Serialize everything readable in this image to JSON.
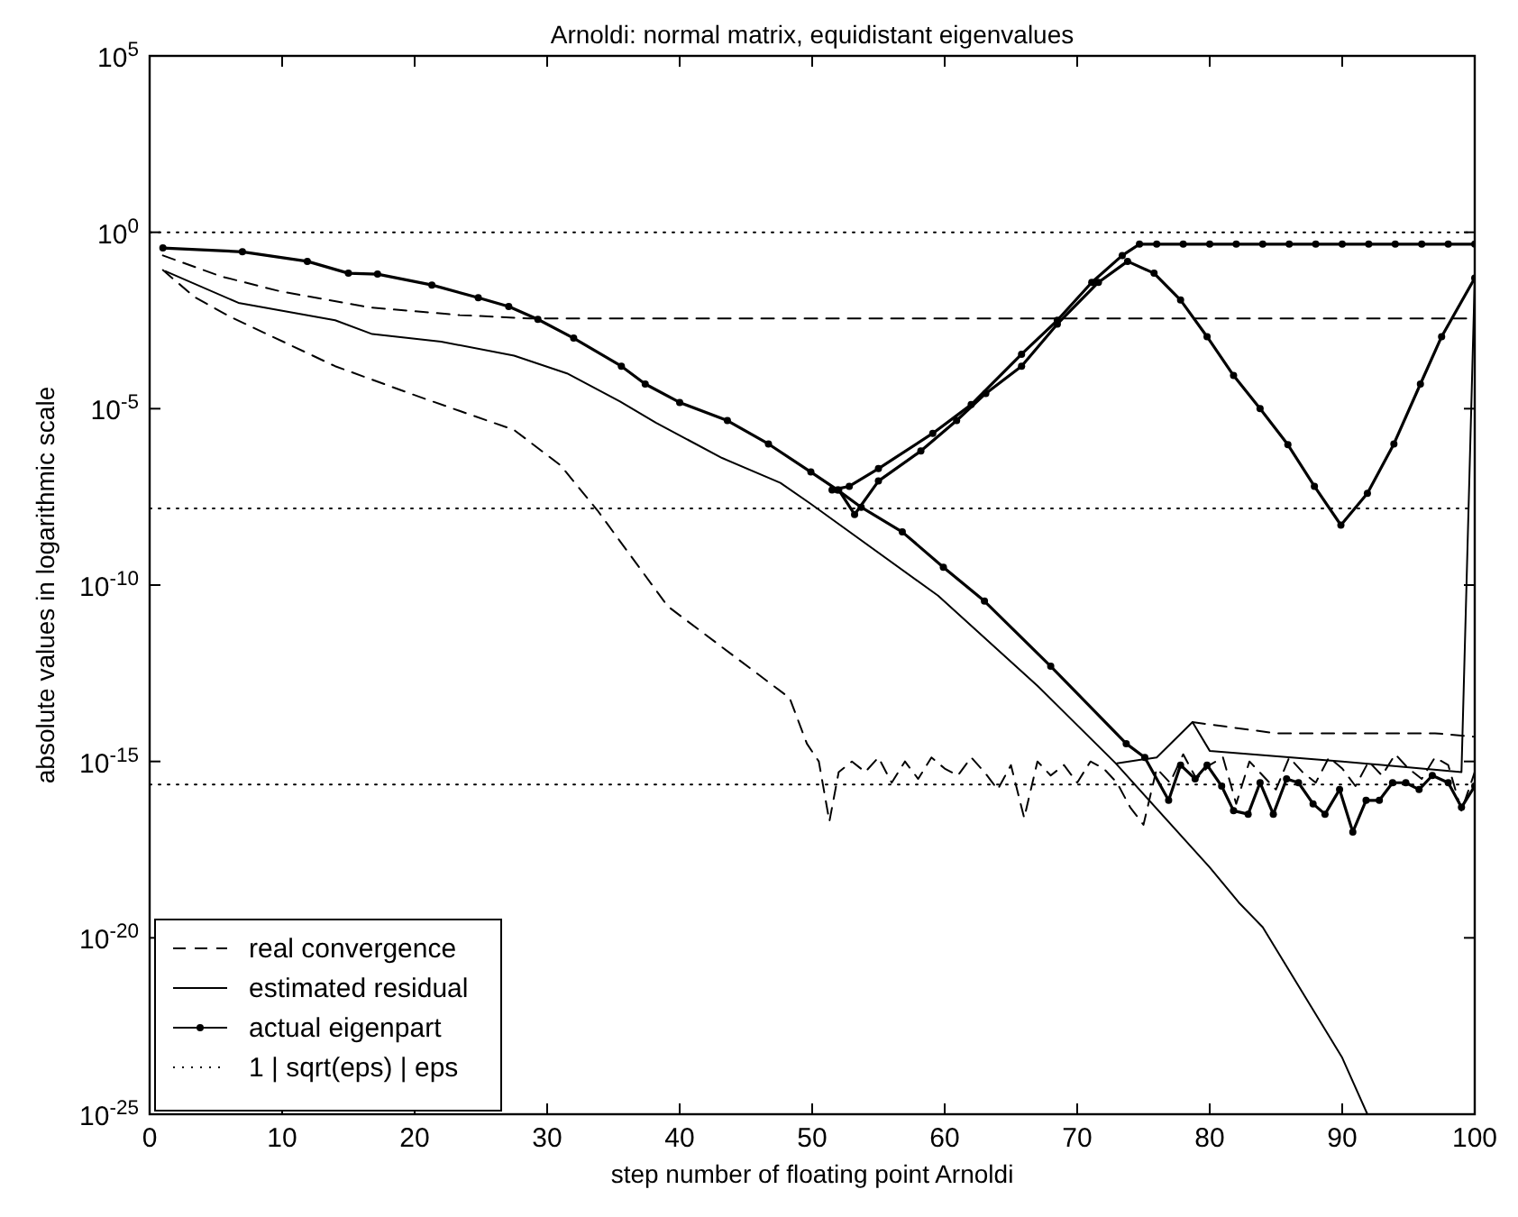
{
  "chart_data": {
    "type": "line",
    "title": "Arnoldi: normal matrix, equidistant eigenvalues",
    "xlabel": "step number of floating point Arnoldi",
    "ylabel": "absolute values in logarithmic scale",
    "log": "y",
    "xlim": [
      0,
      100
    ],
    "xticks": [
      0,
      10,
      20,
      30,
      40,
      50,
      60,
      70,
      80,
      90,
      100
    ],
    "ylim": [
      1e-25,
      100000
    ],
    "yticks": [
      {
        "value": 1e-25,
        "label": "10$^{-25}$"
      },
      {
        "value": 1e-20,
        "label": "10$^{-20}$"
      },
      {
        "value": 1e-15,
        "label": "10$^{-15}$"
      },
      {
        "value": 1e-10,
        "label": "10$^{-10}$"
      },
      {
        "value": 1e-05,
        "label": "10$^{-5}$"
      },
      {
        "value": 1,
        "label": "10$^{0}$"
      },
      {
        "value": 100000,
        "label": "10$^{5}$"
      }
    ],
    "legend": "bottom left",
    "series": [
      {
        "name": "real convergence",
        "color": "#000000",
        "line_style": "dashed",
        "marker": "none",
        "x": [
          1,
          5.4,
          9.9,
          16.6,
          23.4,
          28.7,
          100
        ],
        "values": [
          0.22,
          0.056,
          0.021,
          0.0074,
          0.0045,
          0.0036,
          0.0036
        ]
      },
      {
        "color": "#000000",
        "line_style": "dashed",
        "marker": "none",
        "x": [
          1,
          3.4,
          6.1,
          14,
          20.3,
          27.5,
          31,
          33.8,
          39.1,
          48.3,
          49.6,
          50.5,
          51.3,
          52,
          53,
          54,
          55,
          56,
          57,
          58,
          59,
          60,
          61,
          62,
          63,
          64,
          65,
          66,
          67,
          68,
          69,
          70,
          71,
          72,
          73,
          74,
          75,
          76,
          77,
          78,
          79,
          80,
          81,
          82,
          83,
          84,
          85,
          86,
          87,
          88,
          89,
          90,
          91,
          92,
          93,
          94,
          95,
          96,
          97,
          98,
          99,
          100
        ],
        "values": [
          0.085,
          0.0145,
          0.004,
          0.00016,
          2.2e-05,
          2.5e-06,
          2.5e-07,
          1.3e-08,
          2.5e-11,
          6.3e-14,
          3.2e-15,
          1e-15,
          2e-17,
          5e-16,
          1e-15,
          5e-16,
          1.3e-15,
          2.5e-16,
          1e-15,
          3.2e-16,
          1.3e-15,
          6.3e-16,
          4e-16,
          1.3e-15,
          5e-16,
          1.6e-16,
          7.9e-16,
          2.5e-17,
          1e-15,
          4e-16,
          7.9e-16,
          2.5e-16,
          1e-15,
          6.3e-16,
          2.5e-16,
          5e-17,
          1.6e-17,
          6.3e-16,
          2.5e-16,
          1.6e-15,
          3.2e-16,
          7.9e-16,
          1.3e-15,
          6.3e-17,
          1e-15,
          4e-16,
          1.6e-16,
          1.3e-15,
          5e-16,
          2.5e-16,
          1.3e-15,
          6.3e-16,
          2e-16,
          1e-15,
          4e-16,
          1.6e-15,
          6.3e-16,
          3.2e-16,
          1.3e-15,
          7.9e-16,
          4e-17,
          5e-16
        ]
      },
      {
        "color": "#000000",
        "line_style": "dashed",
        "marker": "none",
        "x": [
          78.7,
          85,
          90,
          97,
          100
        ],
        "values": [
          1.3e-14,
          6.3e-15,
          6.3e-15,
          6.3e-15,
          5e-15
        ]
      },
      {
        "name": "estimated residual",
        "color": "#000000",
        "line_style": "solid",
        "marker": "none",
        "x": [
          1.2,
          6.7,
          14,
          16.8,
          22,
          27.5,
          31.5,
          35.5,
          38.2,
          43.2,
          47.6,
          49.9,
          59.5,
          67,
          72.9,
          80,
          82.2,
          84,
          90,
          91.9
        ],
        "values": [
          0.079,
          0.01,
          0.0032,
          0.0013,
          0.00079,
          0.00032,
          0.0001,
          1.6e-05,
          4e-06,
          4e-07,
          7.9e-08,
          2e-08,
          5e-11,
          1.4e-13,
          8.9e-16,
          1e-18,
          1e-19,
          2e-20,
          4e-24,
          1e-25
        ]
      },
      {
        "color": "#000000",
        "line_style": "solid",
        "marker": "none",
        "x": [
          73,
          76,
          78.7,
          80,
          90,
          97.5,
          99,
          100
        ],
        "values": [
          8.9e-16,
          1.3e-15,
          1.3e-14,
          2e-15,
          1e-15,
          5.6e-16,
          5e-16,
          0.05
        ]
      },
      {
        "name": "actual eigenpart",
        "color": "#000000",
        "line_style": "solid",
        "marker": "circle",
        "x": [
          1,
          7,
          11.9,
          15,
          17.2,
          21.3,
          24.8,
          27.1,
          29.3,
          32,
          35.6,
          37.4,
          40,
          43.6,
          46.7,
          49.9,
          51.9,
          53.7,
          56.8,
          59.9,
          63,
          68,
          73.7,
          75.1,
          76.9,
          77.8,
          78.9,
          79.8,
          80.9,
          81.8,
          82.9,
          83.8,
          84.8,
          85.8,
          86.7,
          87.8,
          88.7,
          89.8,
          90.8,
          91.8,
          92.8,
          93.8,
          94.8,
          95.8,
          96.8,
          98,
          99,
          100
        ],
        "values": [
          0.36,
          0.28,
          0.15,
          0.069,
          0.065,
          0.032,
          0.014,
          0.0079,
          0.0034,
          0.001,
          0.00016,
          5e-05,
          1.5e-05,
          4.6e-06,
          1e-06,
          1.6e-07,
          5e-08,
          1.6e-08,
          3.2e-09,
          3.2e-10,
          3.5e-11,
          5e-13,
          3.2e-15,
          1.3e-15,
          7.9e-17,
          7.9e-16,
          3.2e-16,
          7.9e-16,
          2e-16,
          4e-17,
          3.2e-17,
          2.5e-16,
          3.2e-17,
          3.2e-16,
          2.5e-16,
          6.3e-17,
          3.2e-17,
          1.6e-16,
          1e-17,
          7.9e-17,
          7.9e-17,
          2.5e-16,
          2.5e-16,
          1.6e-16,
          4e-16,
          2.5e-16,
          5e-17,
          2e-16
        ]
      },
      {
        "color": "#000000",
        "line_style": "solid",
        "marker": "circle",
        "x": [
          52,
          53.2,
          55,
          58.2,
          60.9,
          63.1,
          65.8,
          68.5,
          71.6,
          73.8,
          75.8,
          77.8,
          79.8,
          81.8,
          83.8,
          85.9,
          87.9,
          89.9,
          91.9,
          93.9,
          95.9,
          97.5,
          100
        ],
        "values": [
          5e-08,
          1e-08,
          8.9e-08,
          6.3e-07,
          4.6e-06,
          2.7e-05,
          0.00016,
          0.0025,
          0.038,
          0.15,
          0.069,
          0.012,
          0.0011,
          8.7e-05,
          1e-05,
          9.5e-07,
          6.3e-08,
          5e-09,
          4e-08,
          1e-06,
          5e-05,
          0.0011,
          0.05
        ]
      },
      {
        "color": "#000000",
        "line_style": "solid",
        "marker": "circle",
        "x": [
          51.5,
          52.8,
          55,
          59.1,
          62,
          65.8,
          68.5,
          71.1,
          73.4,
          74.7,
          76,
          78,
          80,
          82,
          84,
          86,
          88,
          90,
          92,
          94,
          96,
          98,
          100
        ],
        "values": [
          5e-08,
          6.3e-08,
          2e-07,
          2e-06,
          1.3e-05,
          0.00035,
          0.0032,
          0.038,
          0.22,
          0.46,
          0.46,
          0.46,
          0.46,
          0.46,
          0.46,
          0.46,
          0.46,
          0.46,
          0.46,
          0.46,
          0.46,
          0.46,
          0.46
        ]
      },
      {
        "name": "1 | sqrt(eps) | eps",
        "color": "#000000",
        "line_style": "dotted",
        "marker": "none",
        "x": [
          0,
          100
        ],
        "values": [
          1,
          1
        ]
      },
      {
        "color": "#000000",
        "line_style": "dotted",
        "marker": "none",
        "x": [
          0,
          100
        ],
        "values": [
          1.49e-08,
          1.49e-08
        ]
      },
      {
        "color": "#000000",
        "line_style": "dotted",
        "marker": "none",
        "x": [
          0,
          100
        ],
        "values": [
          2.22e-16,
          2.22e-16
        ]
      }
    ]
  }
}
